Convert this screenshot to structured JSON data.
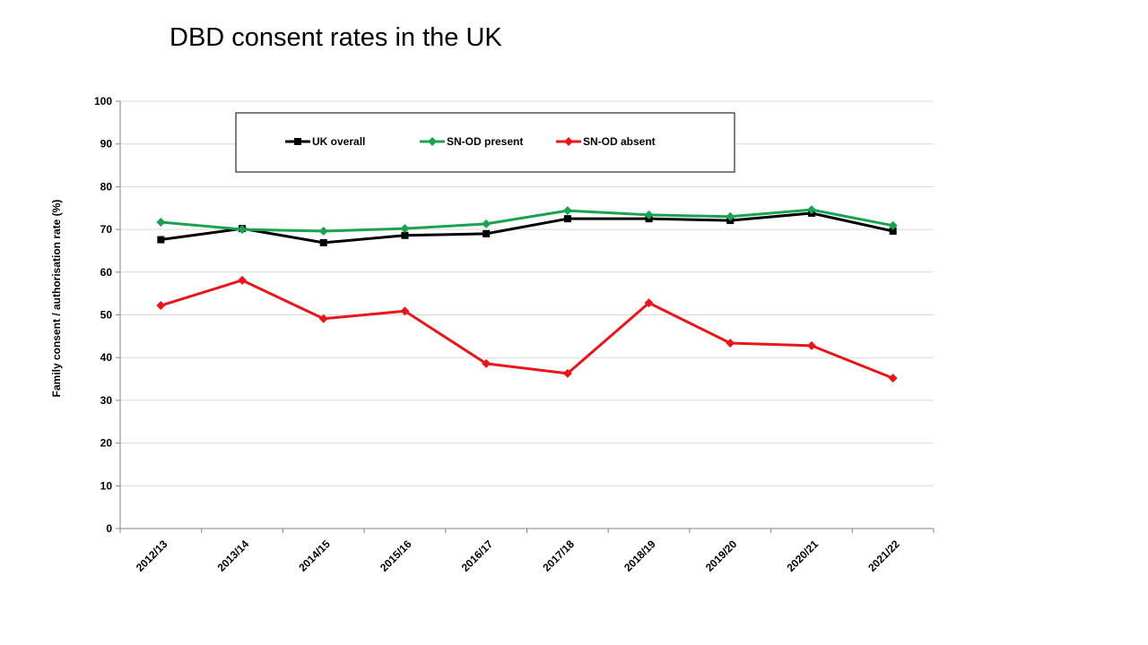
{
  "title": "DBD consent rates in the UK",
  "chart_data": {
    "type": "line",
    "title": "DBD consent rates in the UK",
    "xlabel": "",
    "ylabel": "Family consent / authorisation rate (%)",
    "ylim": [
      0,
      100
    ],
    "yticks": [
      0,
      10,
      20,
      30,
      40,
      50,
      60,
      70,
      80,
      90,
      100
    ],
    "grid": true,
    "legend_position": "top-center",
    "categories": [
      "2012/13",
      "2013/14",
      "2014/15",
      "2015/16",
      "2016/17",
      "2017/18",
      "2018/19",
      "2019/20",
      "2020/21",
      "2021/22"
    ],
    "series": [
      {
        "name": "UK overall",
        "color": "#000000",
        "marker": "square",
        "values": [
          67.6,
          70.2,
          66.9,
          68.6,
          69.0,
          72.5,
          72.5,
          72.1,
          73.8,
          69.6
        ]
      },
      {
        "name": "SN-OD present",
        "color": "#1aa252",
        "marker": "diamond",
        "values": [
          71.7,
          70.0,
          69.6,
          70.2,
          71.3,
          74.4,
          73.4,
          73.0,
          74.6,
          70.9
        ]
      },
      {
        "name": "SN-OD absent",
        "color": "#e8161b",
        "marker": "diamond",
        "values": [
          52.2,
          58.1,
          49.1,
          50.9,
          38.6,
          36.3,
          52.8,
          43.4,
          42.8,
          35.2
        ]
      }
    ]
  }
}
